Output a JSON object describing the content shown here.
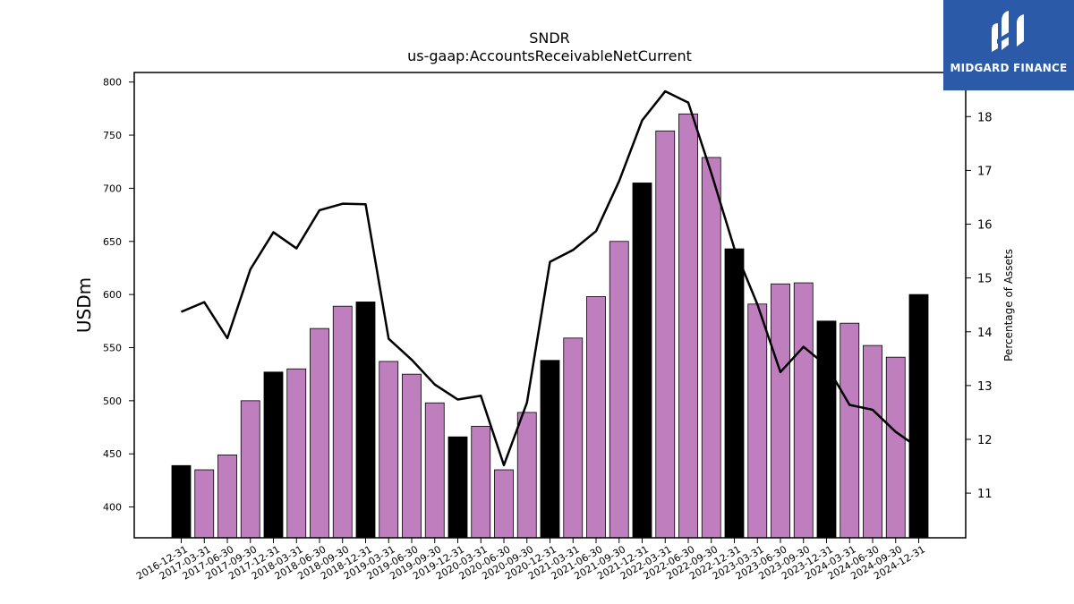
{
  "logo": {
    "text": "MIDGARD FINANCE",
    "icon": "midgard-logo-icon",
    "background": "#2b5aa8"
  },
  "chart_data": {
    "type": "bar",
    "title": "SNDR",
    "subtitle": "us-gaap:AccountsReceivableNetCurrent",
    "ylabel": "USDm",
    "y2label": "Percentage of Assets",
    "ylim": [
      371,
      809
    ],
    "y2lim": [
      10.17,
      18.82
    ],
    "yticks": [
      400,
      450,
      500,
      550,
      600,
      650,
      700,
      750,
      800
    ],
    "y2ticks": [
      11,
      12,
      13,
      14,
      15,
      16,
      17,
      18
    ],
    "grid": false,
    "colors": {
      "bar_q4": "#000000",
      "bar_other": "#bf7fbf",
      "line": "#000000"
    },
    "categories": [
      "2016-12-31",
      "2017-03-31",
      "2017-06-30",
      "2017-09-30",
      "2017-12-31",
      "2018-03-31",
      "2018-06-30",
      "2018-09-30",
      "2018-12-31",
      "2019-03-31",
      "2019-06-30",
      "2019-09-30",
      "2019-12-31",
      "2020-03-31",
      "2020-06-30",
      "2020-09-30",
      "2020-12-31",
      "2021-03-31",
      "2021-06-30",
      "2021-09-30",
      "2021-12-31",
      "2022-03-31",
      "2022-06-30",
      "2022-09-30",
      "2022-12-31",
      "2023-03-31",
      "2023-06-30",
      "2023-09-30",
      "2023-12-31",
      "2024-03-31",
      "2024-06-30",
      "2024-09-30",
      "2024-12-31"
    ],
    "series": [
      {
        "type": "bar",
        "axis": "left",
        "values": [
          439,
          435,
          449,
          500,
          527,
          530,
          568,
          589,
          593,
          537,
          525,
          498,
          466,
          476,
          435,
          489,
          538,
          559,
          598,
          650,
          705,
          754,
          770,
          729,
          643,
          591,
          610,
          611,
          575,
          573,
          552,
          541,
          600
        ]
      },
      {
        "type": "line",
        "axis": "right",
        "values": [
          14.37,
          14.55,
          13.88,
          15.16,
          15.85,
          15.55,
          16.26,
          16.38,
          16.37,
          13.87,
          13.48,
          13.02,
          12.74,
          12.81,
          11.52,
          12.68,
          15.3,
          15.52,
          15.87,
          16.8,
          17.93,
          18.47,
          18.26,
          16.95,
          15.55,
          14.51,
          13.25,
          13.72,
          13.37,
          12.64,
          12.55,
          12.14,
          11.84
        ]
      }
    ]
  }
}
